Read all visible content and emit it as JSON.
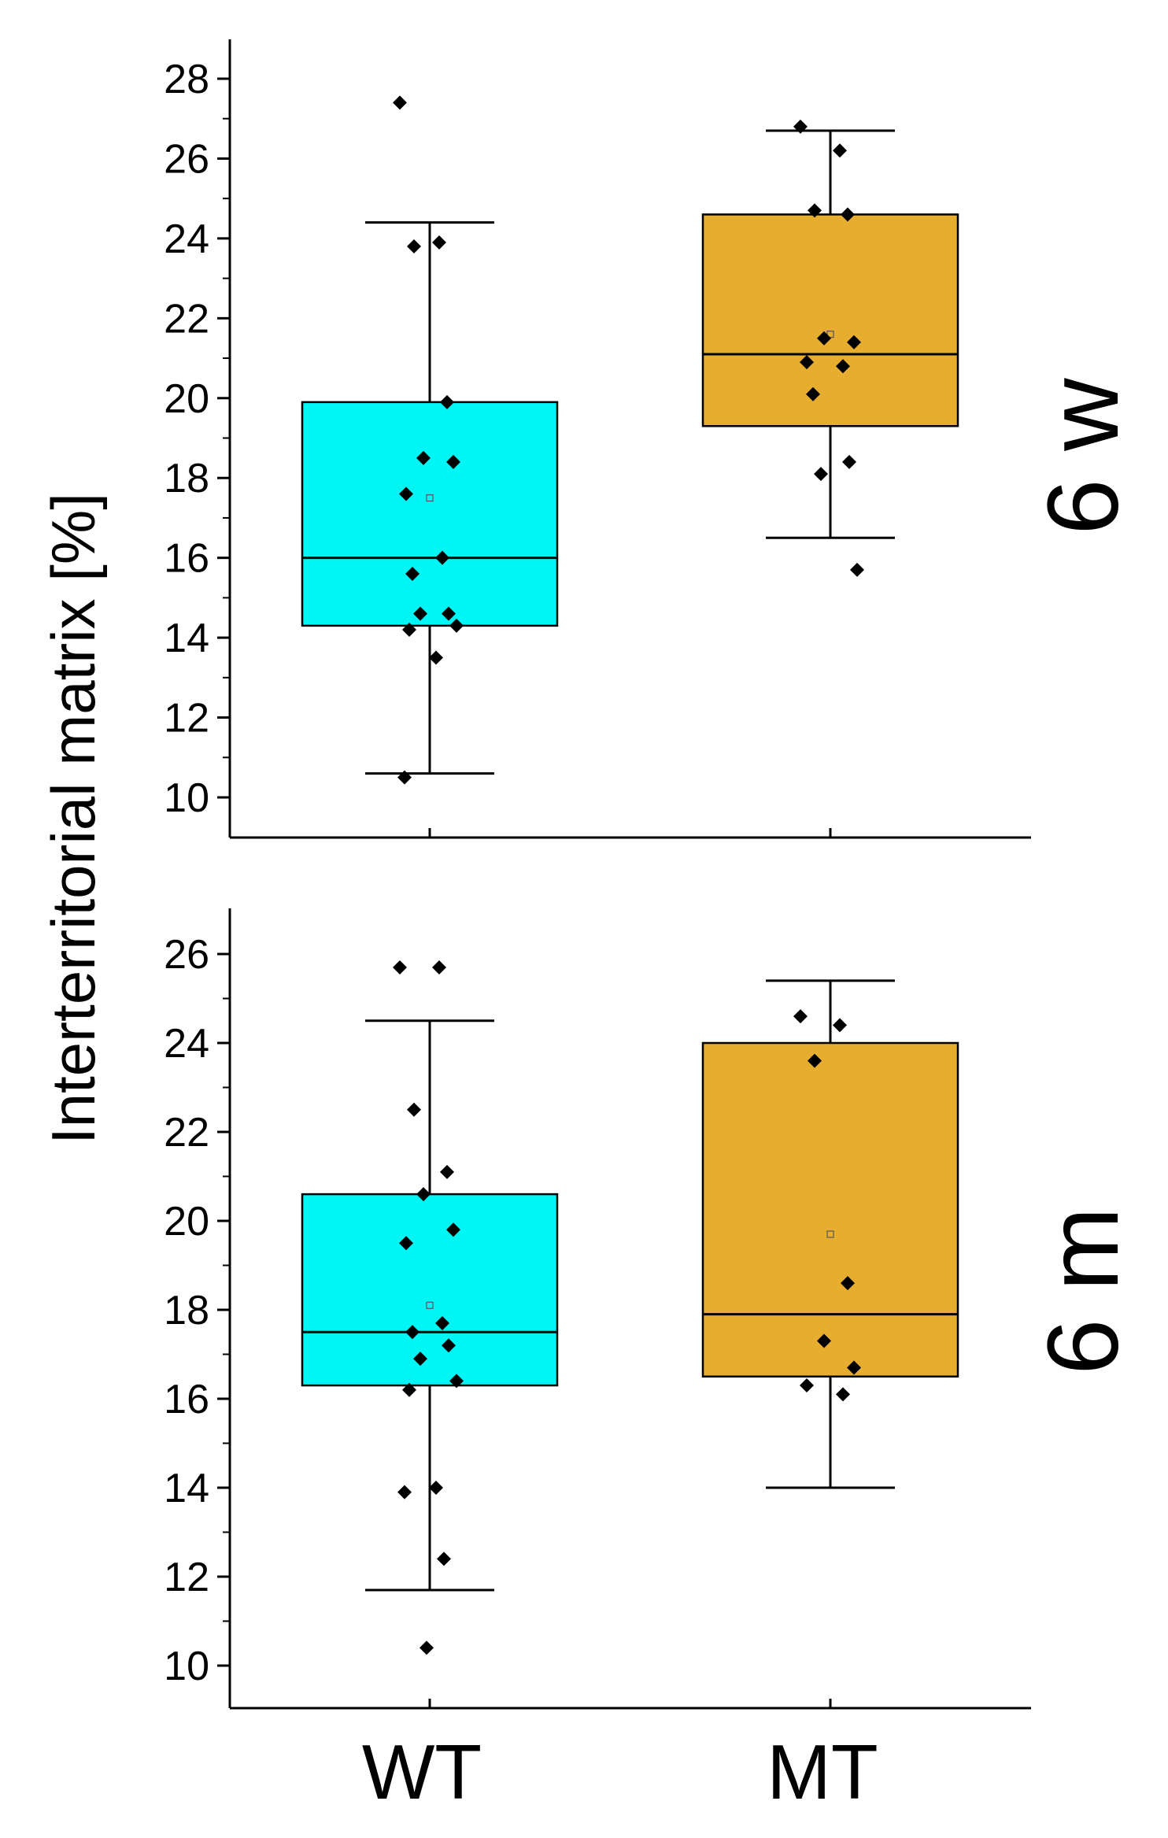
{
  "chart_data": {
    "type": "box",
    "ylabel": "Interterritorial matrix [%]",
    "categories": [
      "WT",
      "MT"
    ],
    "colors": {
      "WT": "#00F5F5",
      "MT": "#E6AD2F"
    },
    "panels": [
      {
        "label": "6 w",
        "ylim": [
          9,
          29
        ],
        "yticks": [
          10,
          12,
          14,
          16,
          18,
          20,
          22,
          24,
          26,
          28
        ],
        "boxes": [
          {
            "category": "WT",
            "q1": 14.3,
            "median": 16.0,
            "q3": 19.9,
            "whisker_low": 10.6,
            "whisker_high": 24.4,
            "mean": 17.5,
            "points": [
              27.4,
              23.9,
              23.8,
              19.9,
              18.5,
              18.4,
              17.6,
              16.0,
              15.6,
              14.6,
              14.6,
              14.3,
              14.2,
              13.5,
              10.5
            ]
          },
          {
            "category": "MT",
            "q1": 19.3,
            "median": 21.1,
            "q3": 24.6,
            "whisker_low": 16.5,
            "whisker_high": 26.7,
            "mean": 21.6,
            "points": [
              26.8,
              26.2,
              24.7,
              24.6,
              21.5,
              21.4,
              20.9,
              20.8,
              20.1,
              18.4,
              18.1,
              15.7
            ]
          }
        ]
      },
      {
        "label": "6 m",
        "ylim": [
          9,
          27
        ],
        "yticks": [
          10,
          12,
          14,
          16,
          18,
          20,
          22,
          24,
          26
        ],
        "boxes": [
          {
            "category": "WT",
            "q1": 16.3,
            "median": 17.5,
            "q3": 20.6,
            "whisker_low": 11.7,
            "whisker_high": 24.5,
            "mean": 18.1,
            "points": [
              25.7,
              25.7,
              22.5,
              21.1,
              20.6,
              19.8,
              19.5,
              17.7,
              17.5,
              17.2,
              16.9,
              16.4,
              16.2,
              14.0,
              13.9,
              12.4,
              10.4
            ]
          },
          {
            "category": "MT",
            "q1": 16.5,
            "median": 17.9,
            "q3": 24.0,
            "whisker_low": 14.0,
            "whisker_high": 25.4,
            "mean": 19.7,
            "points": [
              24.6,
              24.4,
              23.6,
              18.6,
              17.3,
              16.7,
              16.3,
              16.1
            ]
          }
        ]
      }
    ]
  }
}
